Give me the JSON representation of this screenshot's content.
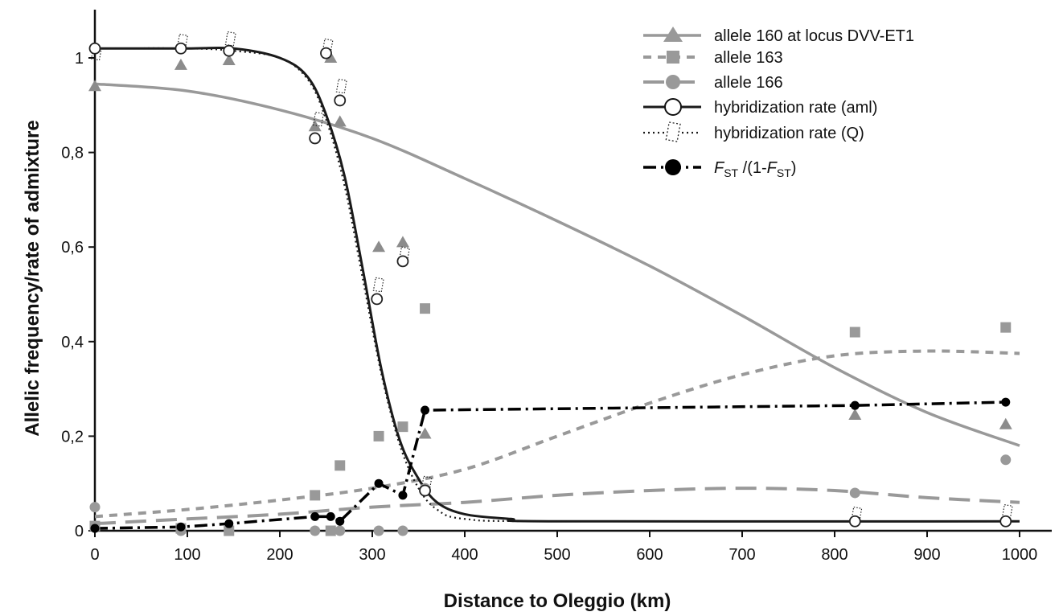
{
  "chart_data": {
    "type": "line",
    "xlabel": "Distance to Oleggio (km)",
    "ylabel": "Allelic frequency/rate of admixture",
    "xlim": [
      0,
      1000
    ],
    "ylim": [
      0,
      1.1
    ],
    "x_ticks": [
      "0",
      "100",
      "200",
      "300",
      "400",
      "500",
      "600",
      "700",
      "800",
      "900",
      "1000"
    ],
    "y_ticks": [
      "0",
      "0,2",
      "0,4",
      "0,6",
      "0,8",
      "1"
    ],
    "legend_position": "top-right",
    "colors": {
      "allele_160": "#999999",
      "allele_163": "#999999",
      "allele_166": "#999999",
      "hybridization": "#1a1a1a",
      "fst": "#000000"
    },
    "series": [
      {
        "name": "allele 160 at locus DVV-ET1",
        "marker": "triangle",
        "points": [
          [
            0,
            0.94
          ],
          [
            93,
            0.985
          ],
          [
            145,
            0.995
          ],
          [
            238,
            0.855
          ],
          [
            255,
            1.0
          ],
          [
            265,
            0.865
          ],
          [
            307,
            0.6
          ],
          [
            333,
            0.61
          ],
          [
            357,
            0.205
          ],
          [
            822,
            0.245
          ],
          [
            985,
            0.225
          ]
        ],
        "curve": [
          [
            0,
            0.945
          ],
          [
            100,
            0.93
          ],
          [
            200,
            0.89
          ],
          [
            300,
            0.83
          ],
          [
            400,
            0.745
          ],
          [
            500,
            0.655
          ],
          [
            600,
            0.56
          ],
          [
            700,
            0.455
          ],
          [
            800,
            0.345
          ],
          [
            900,
            0.25
          ],
          [
            1000,
            0.18
          ]
        ]
      },
      {
        "name": "allele 163",
        "marker": "square",
        "points": [
          [
            0,
            0.01
          ],
          [
            93,
            0.005
          ],
          [
            145,
            0.0
          ],
          [
            238,
            0.075
          ],
          [
            255,
            0.0
          ],
          [
            265,
            0.138
          ],
          [
            307,
            0.2
          ],
          [
            333,
            0.22
          ],
          [
            357,
            0.47
          ],
          [
            822,
            0.42
          ],
          [
            985,
            0.43
          ]
        ],
        "curve": [
          [
            0,
            0.03
          ],
          [
            100,
            0.045
          ],
          [
            200,
            0.065
          ],
          [
            300,
            0.09
          ],
          [
            400,
            0.13
          ],
          [
            500,
            0.2
          ],
          [
            600,
            0.27
          ],
          [
            700,
            0.33
          ],
          [
            800,
            0.37
          ],
          [
            900,
            0.38
          ],
          [
            1000,
            0.375
          ]
        ]
      },
      {
        "name": "allele 166",
        "marker": "circle",
        "points": [
          [
            0,
            0.05
          ],
          [
            93,
            0.0
          ],
          [
            145,
            0.0
          ],
          [
            238,
            0.0
          ],
          [
            255,
            0.0
          ],
          [
            265,
            0.0
          ],
          [
            307,
            0.0
          ],
          [
            333,
            0.0
          ],
          [
            357,
            0.09
          ],
          [
            822,
            0.08
          ],
          [
            985,
            0.15
          ]
        ],
        "curve": [
          [
            0,
            0.015
          ],
          [
            100,
            0.025
          ],
          [
            200,
            0.035
          ],
          [
            300,
            0.05
          ],
          [
            400,
            0.06
          ],
          [
            500,
            0.075
          ],
          [
            600,
            0.085
          ],
          [
            700,
            0.09
          ],
          [
            800,
            0.085
          ],
          [
            900,
            0.07
          ],
          [
            1000,
            0.06
          ]
        ]
      },
      {
        "name": "hybridization rate (aml)",
        "marker": "open-circle",
        "points": [
          [
            0,
            1.02
          ],
          [
            93,
            1.02
          ],
          [
            145,
            1.015
          ],
          [
            238,
            0.83
          ],
          [
            250,
            1.01
          ],
          [
            265,
            0.91
          ],
          [
            305,
            0.49
          ],
          [
            333,
            0.57
          ],
          [
            357,
            0.085
          ],
          [
            822,
            0.02
          ],
          [
            985,
            0.02
          ]
        ],
        "curve": [
          [
            0,
            1.02
          ],
          [
            100,
            1.02
          ],
          [
            150,
            1.02
          ],
          [
            200,
            1.0
          ],
          [
            230,
            0.96
          ],
          [
            250,
            0.88
          ],
          [
            270,
            0.75
          ],
          [
            290,
            0.55
          ],
          [
            310,
            0.34
          ],
          [
            330,
            0.19
          ],
          [
            350,
            0.11
          ],
          [
            370,
            0.06
          ],
          [
            400,
            0.035
          ],
          [
            450,
            0.025
          ],
          [
            500,
            0.02
          ],
          [
            1000,
            0.02
          ]
        ]
      },
      {
        "name": "hybridization rate (Q)",
        "marker": "open-dotted-rect",
        "points": [
          [
            0,
            1.0
          ],
          [
            93,
            1.025
          ],
          [
            145,
            1.03
          ],
          [
            240,
            0.86
          ],
          [
            250,
            1.015
          ],
          [
            265,
            0.93
          ],
          [
            305,
            0.51
          ],
          [
            333,
            0.575
          ],
          [
            357,
            0.09
          ],
          [
            822,
            0.025
          ],
          [
            985,
            0.03
          ]
        ],
        "curve": [
          [
            0,
            1.02
          ],
          [
            100,
            1.02
          ],
          [
            150,
            1.015
          ],
          [
            200,
            1.0
          ],
          [
            230,
            0.955
          ],
          [
            250,
            0.87
          ],
          [
            270,
            0.73
          ],
          [
            290,
            0.53
          ],
          [
            310,
            0.33
          ],
          [
            330,
            0.18
          ],
          [
            350,
            0.09
          ],
          [
            370,
            0.045
          ],
          [
            400,
            0.025
          ],
          [
            500,
            0.02
          ],
          [
            1000,
            0.02
          ]
        ]
      },
      {
        "name": "FST /(1-FST)",
        "marker": "filled-circle",
        "points": [
          [
            0,
            0.005
          ],
          [
            93,
            0.008
          ],
          [
            145,
            0.015
          ],
          [
            238,
            0.03
          ],
          [
            255,
            0.03
          ],
          [
            265,
            0.02
          ],
          [
            307,
            0.1
          ],
          [
            333,
            0.075
          ],
          [
            357,
            0.255
          ],
          [
            822,
            0.265
          ],
          [
            985,
            0.272
          ]
        ]
      }
    ]
  },
  "legend": [
    {
      "label": "allele 160 at locus DVV-ET1"
    },
    {
      "label": "allele 163"
    },
    {
      "label": "allele 166"
    },
    {
      "label": "hybridization rate (aml)"
    },
    {
      "label": "hybridization rate (Q)"
    },
    {
      "label_prefix": "F",
      "sub1": "ST",
      "label_mid": " /(1-",
      "label_f2": "F",
      "sub2": "ST",
      "label_suffix": ")"
    }
  ]
}
